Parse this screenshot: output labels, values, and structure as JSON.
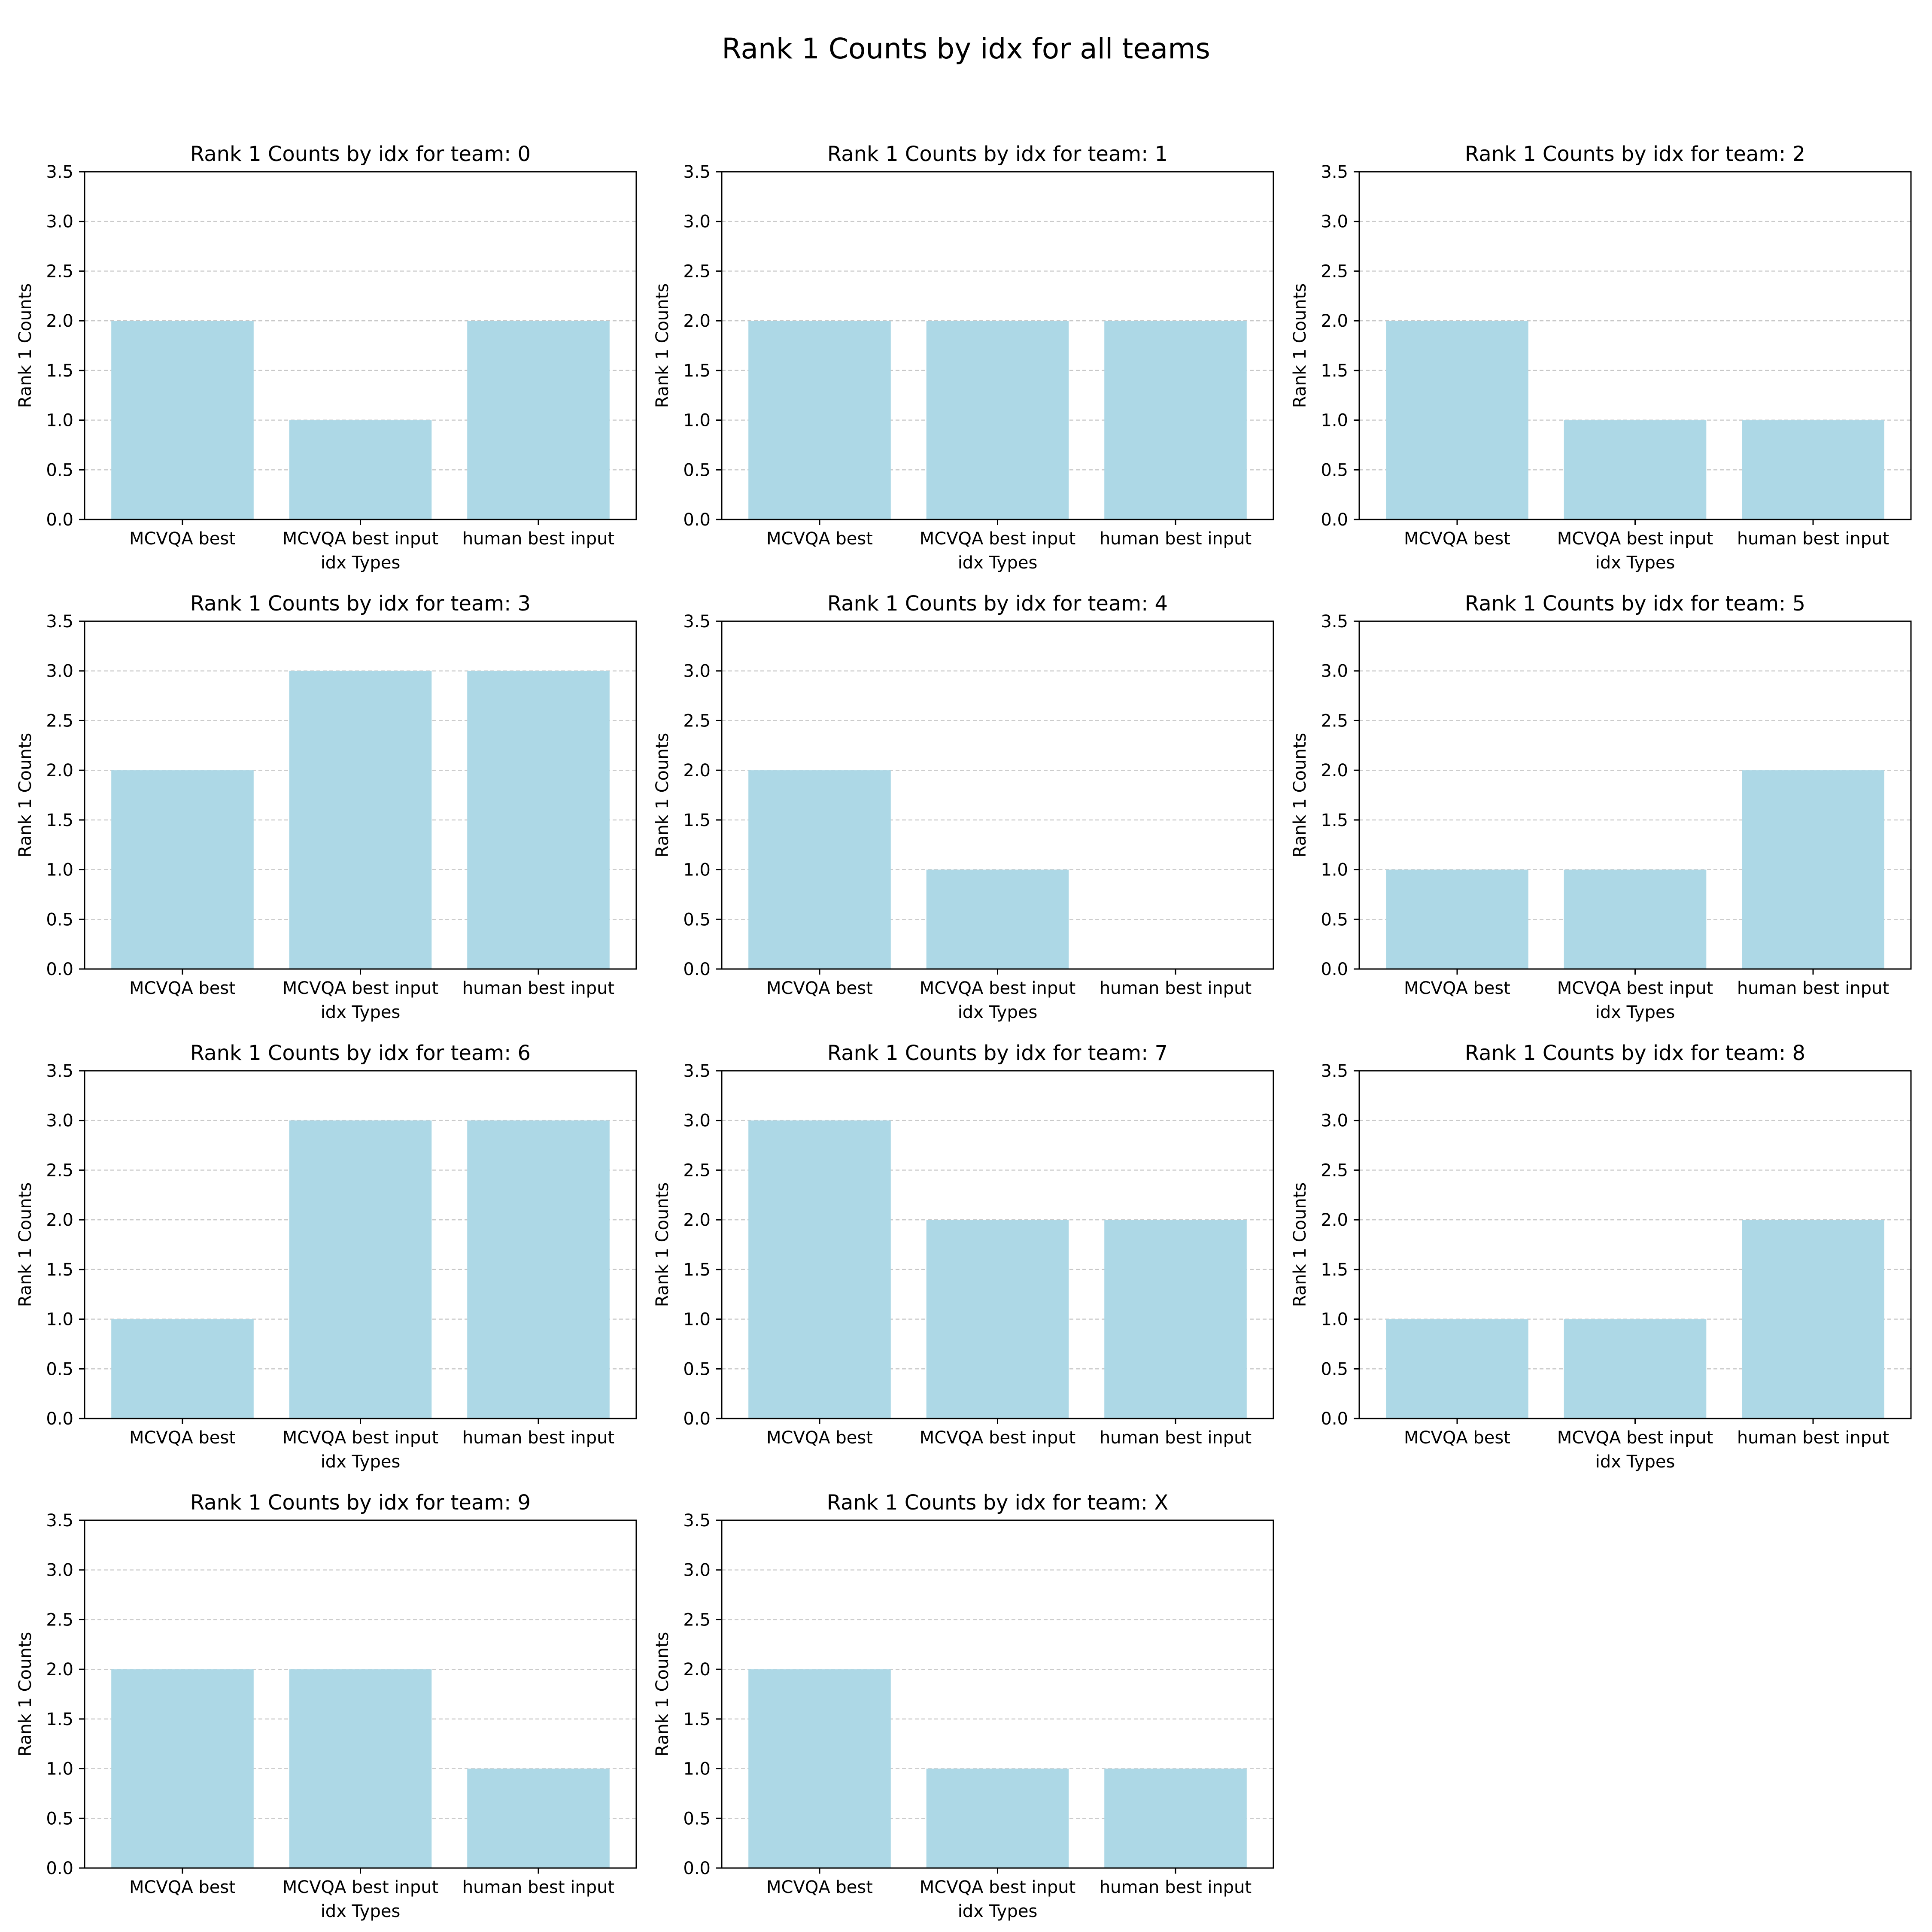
{
  "title": "Rank 1 Counts by idx for all teams",
  "colors": {
    "bar": "#add8e6",
    "grid": "#c8c8c8",
    "axis": "#000000"
  },
  "chart_data": [
    {
      "type": "bar",
      "title": "Rank 1 Counts by idx for team: 0",
      "categories": [
        "MCVQA best",
        "MCVQA best input",
        "human best input"
      ],
      "values": [
        2,
        1,
        2
      ],
      "xlabel": "idx Types",
      "ylabel": "Rank 1 Counts",
      "ylim": [
        0,
        3.5
      ],
      "yticks": [
        "0.0",
        "0.5",
        "1.0",
        "1.5",
        "2.0",
        "2.5",
        "3.0",
        "3.5"
      ],
      "grid": "y-dashed"
    },
    {
      "type": "bar",
      "title": "Rank 1 Counts by idx for team: 1",
      "categories": [
        "MCVQA best",
        "MCVQA best input",
        "human best input"
      ],
      "values": [
        2,
        2,
        2
      ],
      "xlabel": "idx Types",
      "ylabel": "Rank 1 Counts",
      "ylim": [
        0,
        3.5
      ],
      "yticks": [
        "0.0",
        "0.5",
        "1.0",
        "1.5",
        "2.0",
        "2.5",
        "3.0",
        "3.5"
      ],
      "grid": "y-dashed"
    },
    {
      "type": "bar",
      "title": "Rank 1 Counts by idx for team: 2",
      "categories": [
        "MCVQA best",
        "MCVQA best input",
        "human best input"
      ],
      "values": [
        2,
        1,
        1
      ],
      "xlabel": "idx Types",
      "ylabel": "Rank 1 Counts",
      "ylim": [
        0,
        3.5
      ],
      "yticks": [
        "0.0",
        "0.5",
        "1.0",
        "1.5",
        "2.0",
        "2.5",
        "3.0",
        "3.5"
      ],
      "grid": "y-dashed"
    },
    {
      "type": "bar",
      "title": "Rank 1 Counts by idx for team: 3",
      "categories": [
        "MCVQA best",
        "MCVQA best input",
        "human best input"
      ],
      "values": [
        2,
        3,
        3
      ],
      "xlabel": "idx Types",
      "ylabel": "Rank 1 Counts",
      "ylim": [
        0,
        3.5
      ],
      "yticks": [
        "0.0",
        "0.5",
        "1.0",
        "1.5",
        "2.0",
        "2.5",
        "3.0",
        "3.5"
      ],
      "grid": "y-dashed"
    },
    {
      "type": "bar",
      "title": "Rank 1 Counts by idx for team: 4",
      "categories": [
        "MCVQA best",
        "MCVQA best input",
        "human best input"
      ],
      "values": [
        2,
        1,
        0
      ],
      "xlabel": "idx Types",
      "ylabel": "Rank 1 Counts",
      "ylim": [
        0,
        3.5
      ],
      "yticks": [
        "0.0",
        "0.5",
        "1.0",
        "1.5",
        "2.0",
        "2.5",
        "3.0",
        "3.5"
      ],
      "grid": "y-dashed"
    },
    {
      "type": "bar",
      "title": "Rank 1 Counts by idx for team: 5",
      "categories": [
        "MCVQA best",
        "MCVQA best input",
        "human best input"
      ],
      "values": [
        1,
        1,
        2
      ],
      "xlabel": "idx Types",
      "ylabel": "Rank 1 Counts",
      "ylim": [
        0,
        3.5
      ],
      "yticks": [
        "0.0",
        "0.5",
        "1.0",
        "1.5",
        "2.0",
        "2.5",
        "3.0",
        "3.5"
      ],
      "grid": "y-dashed"
    },
    {
      "type": "bar",
      "title": "Rank 1 Counts by idx for team: 6",
      "categories": [
        "MCVQA best",
        "MCVQA best input",
        "human best input"
      ],
      "values": [
        1,
        3,
        3
      ],
      "xlabel": "idx Types",
      "ylabel": "Rank 1 Counts",
      "ylim": [
        0,
        3.5
      ],
      "yticks": [
        "0.0",
        "0.5",
        "1.0",
        "1.5",
        "2.0",
        "2.5",
        "3.0",
        "3.5"
      ],
      "grid": "y-dashed"
    },
    {
      "type": "bar",
      "title": "Rank 1 Counts by idx for team: 7",
      "categories": [
        "MCVQA best",
        "MCVQA best input",
        "human best input"
      ],
      "values": [
        3,
        2,
        2
      ],
      "xlabel": "idx Types",
      "ylabel": "Rank 1 Counts",
      "ylim": [
        0,
        3.5
      ],
      "yticks": [
        "0.0",
        "0.5",
        "1.0",
        "1.5",
        "2.0",
        "2.5",
        "3.0",
        "3.5"
      ],
      "grid": "y-dashed"
    },
    {
      "type": "bar",
      "title": "Rank 1 Counts by idx for team: 8",
      "categories": [
        "MCVQA best",
        "MCVQA best input",
        "human best input"
      ],
      "values": [
        1,
        1,
        2
      ],
      "xlabel": "idx Types",
      "ylabel": "Rank 1 Counts",
      "ylim": [
        0,
        3.5
      ],
      "yticks": [
        "0.0",
        "0.5",
        "1.0",
        "1.5",
        "2.0",
        "2.5",
        "3.0",
        "3.5"
      ],
      "grid": "y-dashed"
    },
    {
      "type": "bar",
      "title": "Rank 1 Counts by idx for team: 9",
      "categories": [
        "MCVQA best",
        "MCVQA best input",
        "human best input"
      ],
      "values": [
        2,
        2,
        1
      ],
      "xlabel": "idx Types",
      "ylabel": "Rank 1 Counts",
      "ylim": [
        0,
        3.5
      ],
      "yticks": [
        "0.0",
        "0.5",
        "1.0",
        "1.5",
        "2.0",
        "2.5",
        "3.0",
        "3.5"
      ],
      "grid": "y-dashed"
    },
    {
      "type": "bar",
      "title": "Rank 1 Counts by idx for team: X",
      "categories": [
        "MCVQA best",
        "MCVQA best input",
        "human best input"
      ],
      "values": [
        2,
        1,
        1
      ],
      "xlabel": "idx Types",
      "ylabel": "Rank 1 Counts",
      "ylim": [
        0,
        3.5
      ],
      "yticks": [
        "0.0",
        "0.5",
        "1.0",
        "1.5",
        "2.0",
        "2.5",
        "3.0",
        "3.5"
      ],
      "grid": "y-dashed"
    }
  ]
}
